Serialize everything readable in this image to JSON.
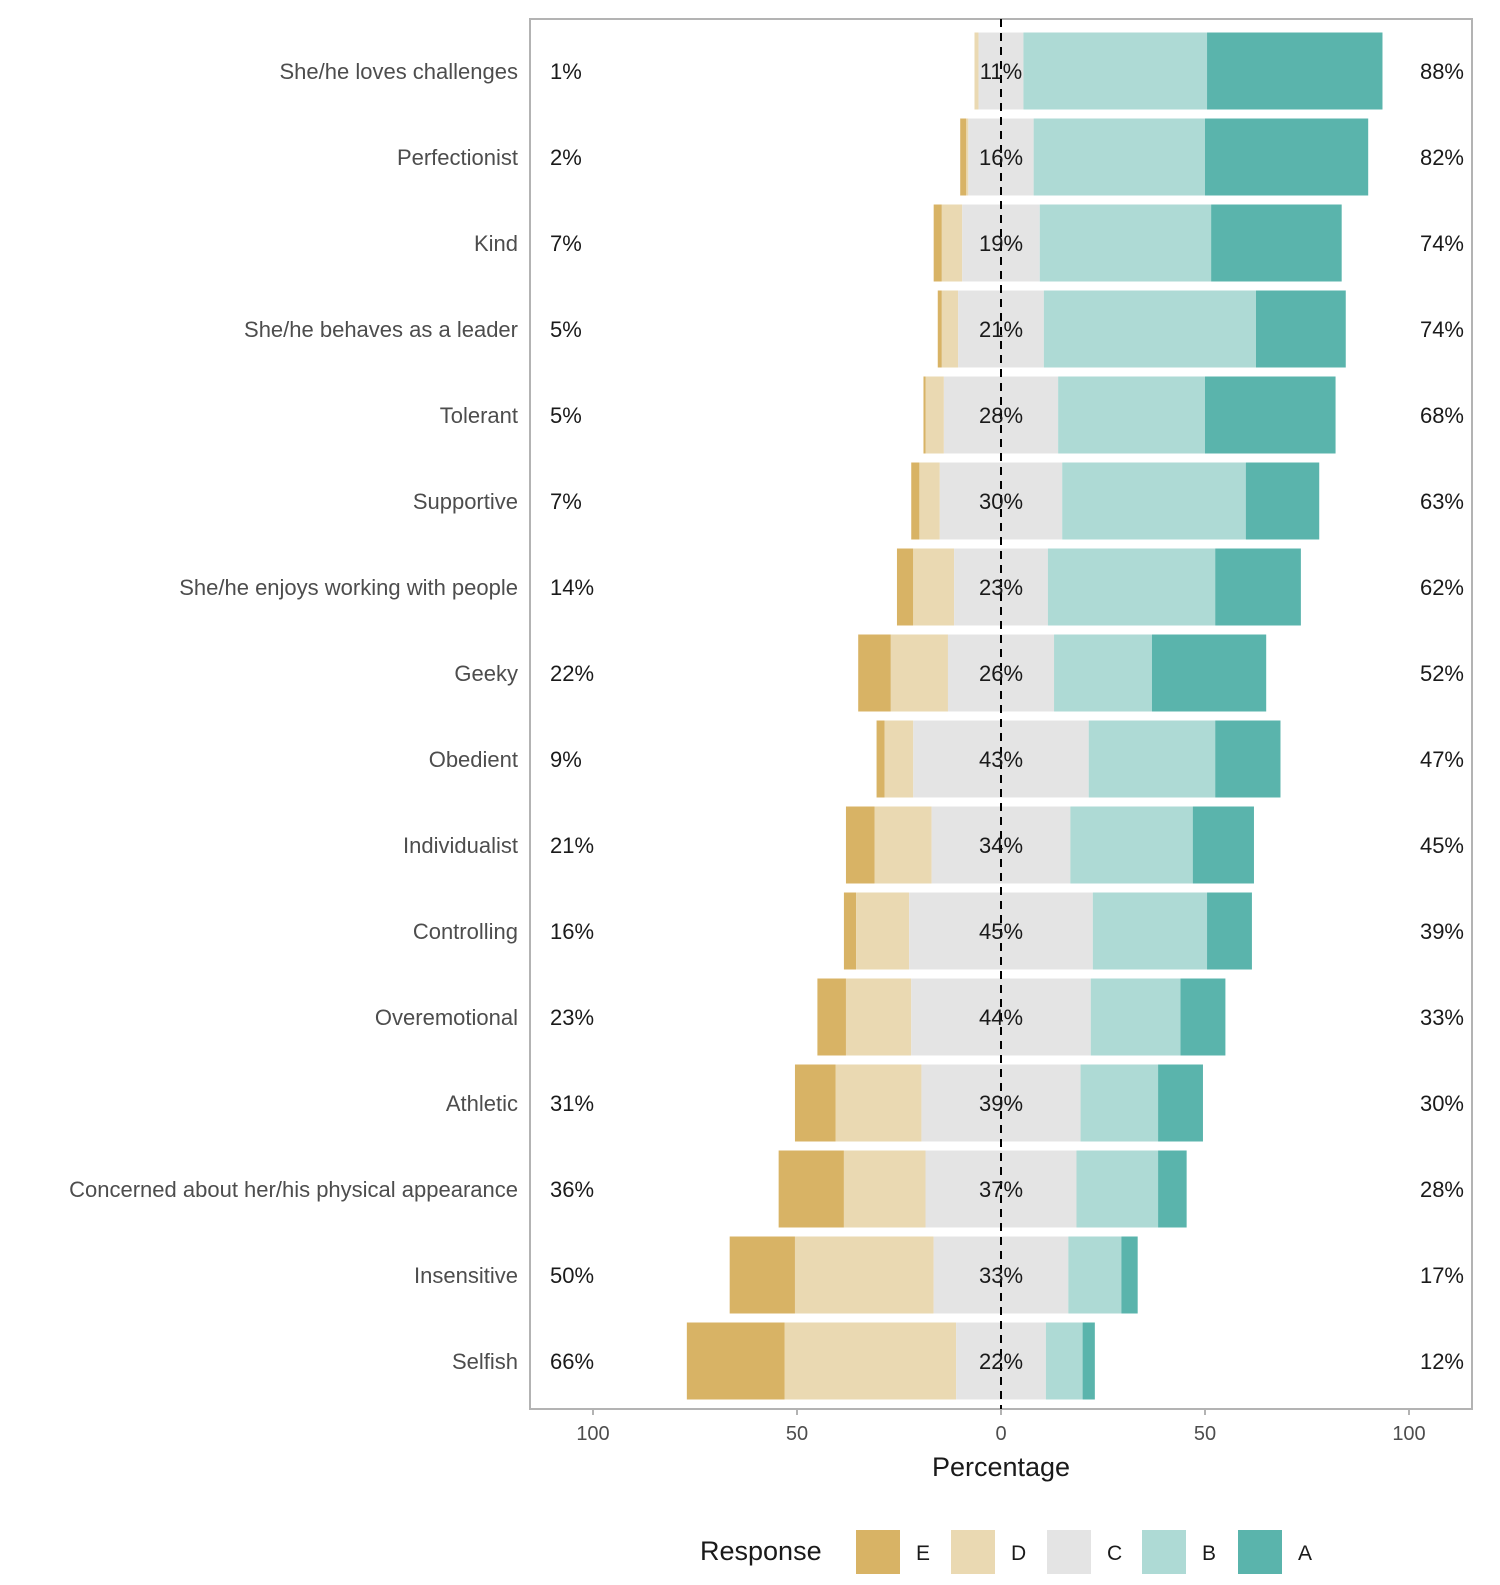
{
  "chart_data": {
    "type": "bar",
    "subtype": "diverging-stacked-likert",
    "xlabel": "Percentage",
    "x_ticks": [
      100,
      50,
      0,
      50,
      100
    ],
    "xlim": [
      -100,
      100
    ],
    "grid": false,
    "legend": {
      "title": "Response",
      "position": "bottom",
      "items": [
        {
          "key": "E",
          "color": "#D8B365"
        },
        {
          "key": "D",
          "color": "#EAD9B2"
        },
        {
          "key": "C",
          "color": "#E4E4E4"
        },
        {
          "key": "B",
          "color": "#AEDAD5"
        },
        {
          "key": "A",
          "color": "#5AB4AC"
        }
      ]
    },
    "colors": {
      "E": "#D8B365",
      "D": "#EAD9B2",
      "C": "#E4E4E4",
      "B": "#AEDAD5",
      "A": "#5AB4AC"
    },
    "rows": [
      {
        "label": "She/he loves challenges",
        "E": 0,
        "D": 1,
        "C": 11,
        "B": 45,
        "A": 43,
        "low_label": "1%",
        "mid_label": "11%",
        "high_label": "88%"
      },
      {
        "label": "Perfectionist",
        "E": 1.5,
        "D": 0.5,
        "C": 16,
        "B": 42,
        "A": 40,
        "low_label": "2%",
        "mid_label": "16%",
        "high_label": "82%"
      },
      {
        "label": "Kind",
        "E": 2,
        "D": 5,
        "C": 19,
        "B": 42,
        "A": 32,
        "low_label": "7%",
        "mid_label": "19%",
        "high_label": "74%"
      },
      {
        "label": "She/he behaves as a leader",
        "E": 1,
        "D": 4,
        "C": 21,
        "B": 52,
        "A": 22,
        "low_label": "5%",
        "mid_label": "21%",
        "high_label": "74%"
      },
      {
        "label": "Tolerant",
        "E": 0.5,
        "D": 4.5,
        "C": 28,
        "B": 36,
        "A": 32,
        "low_label": "5%",
        "mid_label": "28%",
        "high_label": "68%"
      },
      {
        "label": "Supportive",
        "E": 2,
        "D": 5,
        "C": 30,
        "B": 45,
        "A": 18,
        "low_label": "7%",
        "mid_label": "30%",
        "high_label": "63%"
      },
      {
        "label": "She/he enjoys working with people",
        "E": 4,
        "D": 10,
        "C": 23,
        "B": 41,
        "A": 21,
        "low_label": "14%",
        "mid_label": "23%",
        "high_label": "62%"
      },
      {
        "label": "Geeky",
        "E": 8,
        "D": 14,
        "C": 26,
        "B": 24,
        "A": 28,
        "low_label": "22%",
        "mid_label": "26%",
        "high_label": "52%"
      },
      {
        "label": "Obedient",
        "E": 2,
        "D": 7,
        "C": 43,
        "B": 31,
        "A": 16,
        "low_label": "9%",
        "mid_label": "43%",
        "high_label": "47%"
      },
      {
        "label": "Individualist",
        "E": 7,
        "D": 14,
        "C": 34,
        "B": 30,
        "A": 15,
        "low_label": "21%",
        "mid_label": "34%",
        "high_label": "45%"
      },
      {
        "label": "Controlling",
        "E": 3,
        "D": 13,
        "C": 45,
        "B": 28,
        "A": 11,
        "low_label": "16%",
        "mid_label": "45%",
        "high_label": "39%"
      },
      {
        "label": "Overemotional",
        "E": 7,
        "D": 16,
        "C": 44,
        "B": 22,
        "A": 11,
        "low_label": "23%",
        "mid_label": "44%",
        "high_label": "33%"
      },
      {
        "label": "Athletic",
        "E": 10,
        "D": 21,
        "C": 39,
        "B": 19,
        "A": 11,
        "low_label": "31%",
        "mid_label": "39%",
        "high_label": "30%"
      },
      {
        "label": "Concerned about her/his physical appearance",
        "E": 16,
        "D": 20,
        "C": 37,
        "B": 20,
        "A": 7,
        "low_label": "36%",
        "mid_label": "37%",
        "high_label": "28%"
      },
      {
        "label": "Insensitive",
        "E": 16,
        "D": 34,
        "C": 33,
        "B": 13,
        "A": 4,
        "low_label": "50%",
        "mid_label": "33%",
        "high_label": "17%"
      },
      {
        "label": "Selfish",
        "E": 24,
        "D": 42,
        "C": 22,
        "B": 9,
        "A": 3,
        "low_label": "66%",
        "mid_label": "22%",
        "high_label": "12%"
      }
    ]
  }
}
